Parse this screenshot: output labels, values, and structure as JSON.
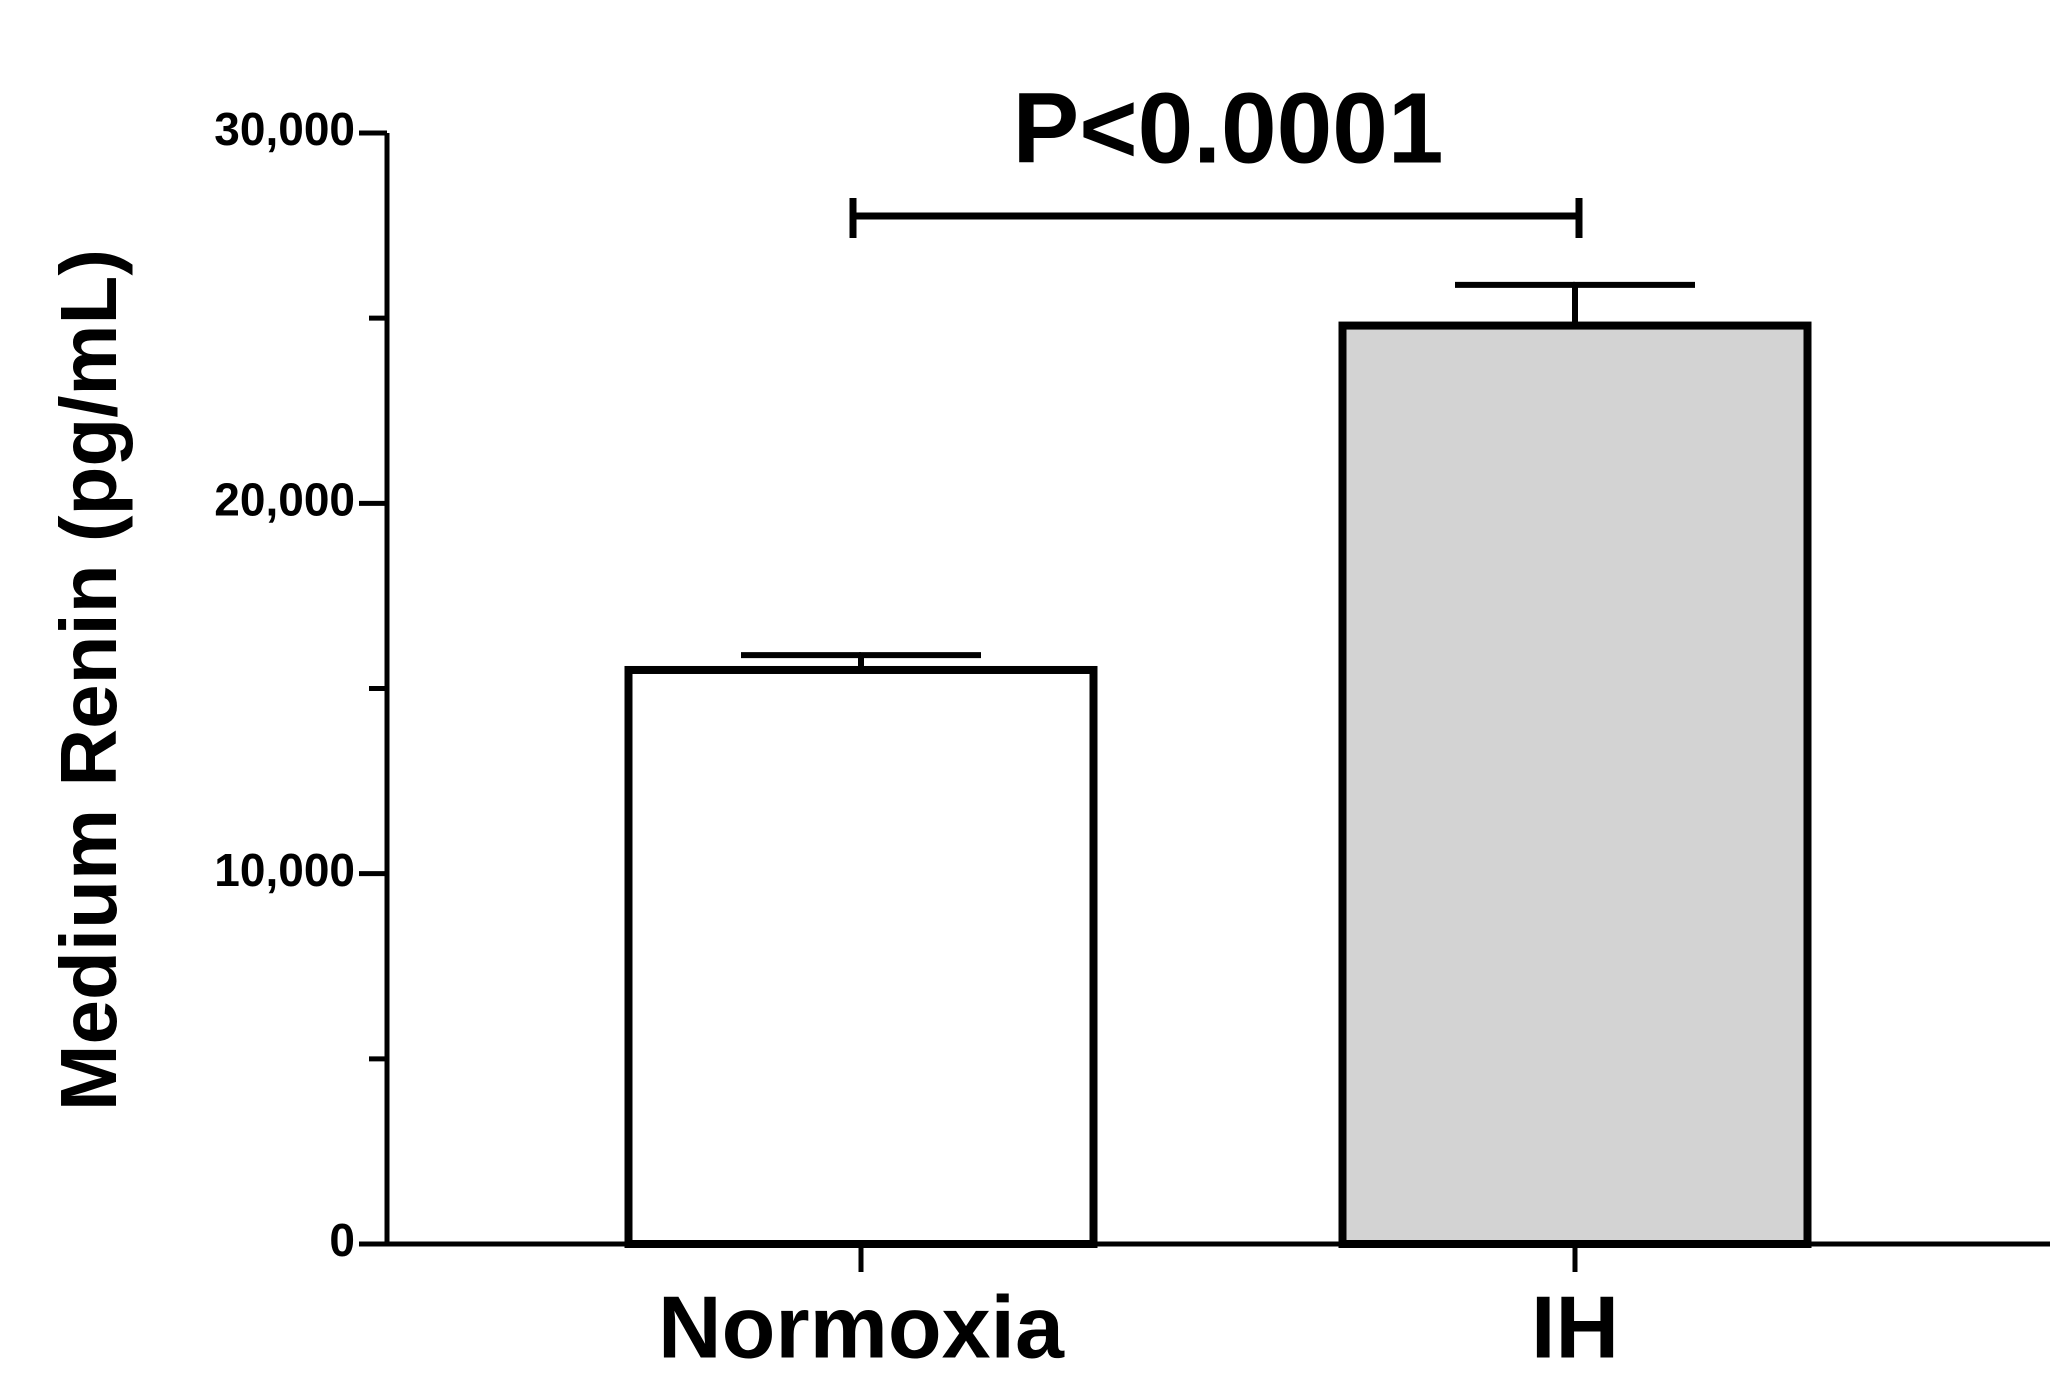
{
  "chart_data": {
    "type": "bar",
    "annotation": "P<0.0001",
    "y_label": "Medium Renin (pg/mL)",
    "categories": [
      "Normoxia",
      "IH"
    ],
    "values": [
      15500,
      24800
    ],
    "errors": [
      400,
      1100
    ],
    "colors": [
      "#ffffff",
      "#d3d3d3"
    ],
    "ylim": [
      0,
      30000
    ],
    "yticks": [
      {
        "value": 0,
        "label": "0"
      },
      {
        "value": 10000,
        "label": "10,000"
      },
      {
        "value": 20000,
        "label": "20,000"
      },
      {
        "value": 30000,
        "label": "30,000"
      }
    ],
    "yminor_ticks": [
      5000,
      15000,
      25000
    ],
    "grid": false
  }
}
